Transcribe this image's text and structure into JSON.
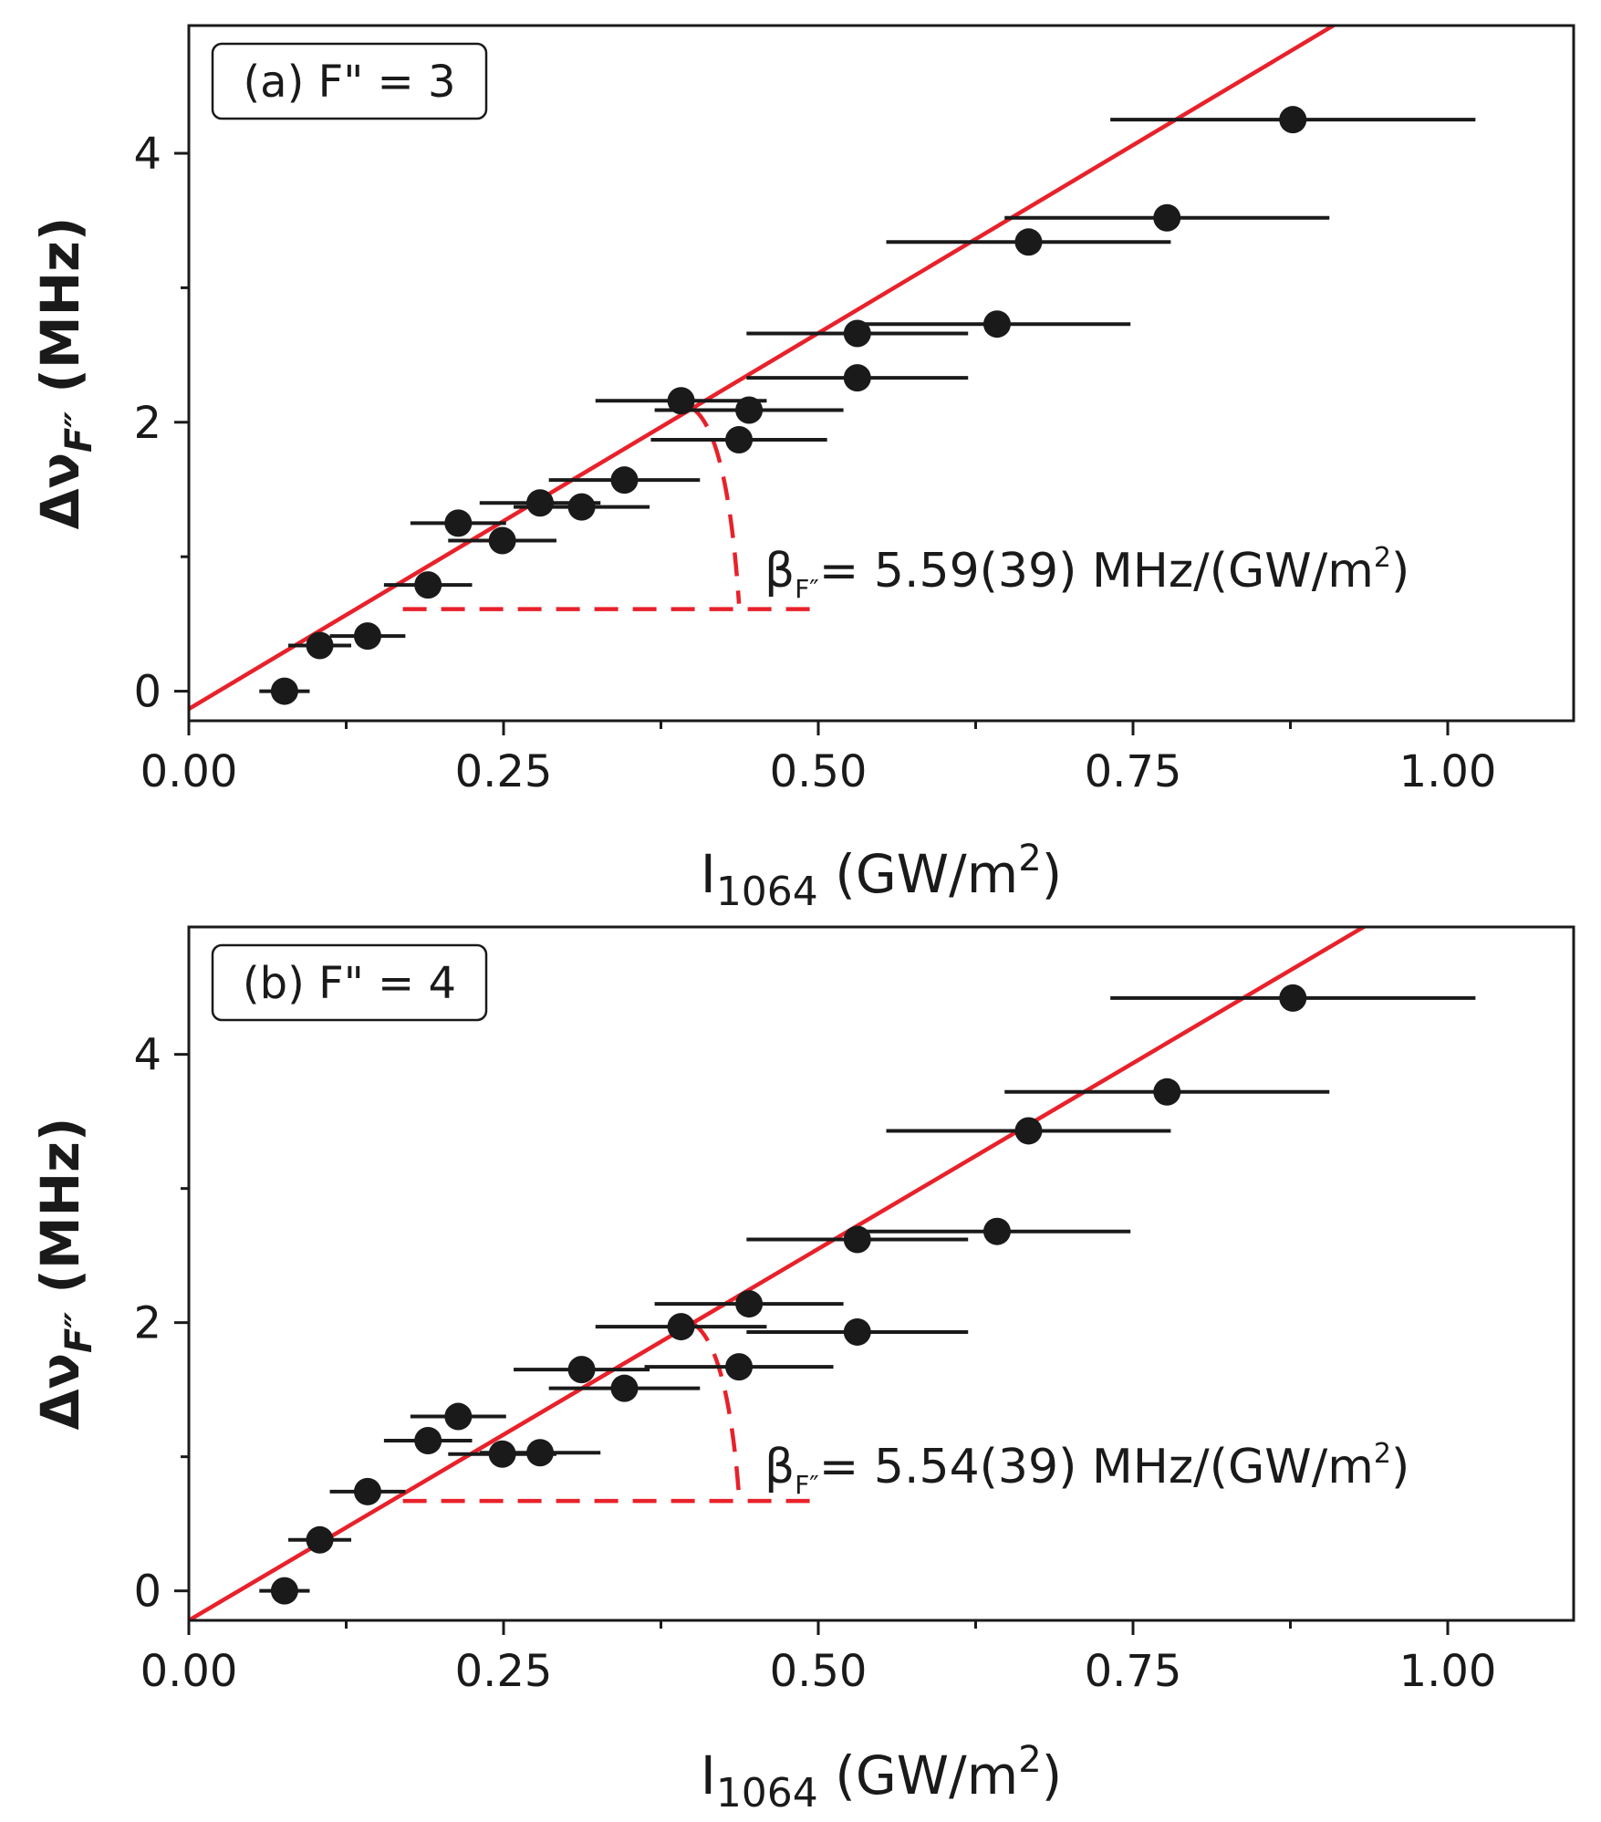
{
  "chart_data": [
    {
      "type": "scatter",
      "panel_label": "(a) F\" = 3",
      "xlabel_main": "I",
      "xlabel_sub": "1064",
      "xlabel_rest": " (GW/m",
      "xlabel_sup": "2",
      "xlabel_close": ")",
      "ylabel_main": "Δν",
      "ylabel_sub": "F″",
      "ylabel_rest": " (MHz)",
      "xlim": [
        0.0,
        1.1
      ],
      "ylim": [
        -0.22,
        4.95
      ],
      "xticks": [
        0.0,
        0.25,
        0.5,
        0.75,
        1.0
      ],
      "xtick_labels": [
        "0.00",
        "0.25",
        "0.50",
        "0.75",
        "1.00"
      ],
      "xminor": [
        0.125,
        0.375,
        0.625,
        0.875
      ],
      "yticks": [
        0,
        2,
        4
      ],
      "ytick_labels": [
        "0",
        "2",
        "4"
      ],
      "yminor": [
        1,
        3
      ],
      "points": [
        {
          "x": 0.076,
          "y": 0.0,
          "xerr": 0.02
        },
        {
          "x": 0.104,
          "y": 0.34,
          "xerr": 0.025
        },
        {
          "x": 0.142,
          "y": 0.41,
          "xerr": 0.03
        },
        {
          "x": 0.19,
          "y": 0.79,
          "xerr": 0.035
        },
        {
          "x": 0.214,
          "y": 1.25,
          "xerr": 0.038
        },
        {
          "x": 0.249,
          "y": 1.12,
          "xerr": 0.043
        },
        {
          "x": 0.279,
          "y": 1.4,
          "xerr": 0.048
        },
        {
          "x": 0.312,
          "y": 1.37,
          "xerr": 0.054
        },
        {
          "x": 0.346,
          "y": 1.57,
          "xerr": 0.06
        },
        {
          "x": 0.391,
          "y": 2.16,
          "xerr": 0.068
        },
        {
          "x": 0.437,
          "y": 1.87,
          "xerr": 0.07
        },
        {
          "x": 0.445,
          "y": 2.09,
          "xerr": 0.075
        },
        {
          "x": 0.531,
          "y": 2.33,
          "xerr": 0.088
        },
        {
          "x": 0.531,
          "y": 2.66,
          "xerr": 0.088
        },
        {
          "x": 0.642,
          "y": 2.73,
          "xerr": 0.106
        },
        {
          "x": 0.667,
          "y": 3.34,
          "xerr": 0.113
        },
        {
          "x": 0.777,
          "y": 3.52,
          "xerr": 0.129
        },
        {
          "x": 0.877,
          "y": 4.25,
          "xerr": 0.145
        }
      ],
      "fit": {
        "slope": 5.59,
        "intercept": -0.132
      },
      "slope_guide": {
        "x0": 0.17,
        "x1": 0.503,
        "apex_x": 0.4,
        "arc_end_x": 0.437,
        "base_y": 0.61
      },
      "annotation_beta": "β",
      "annotation_sub": "F″",
      "annotation_value": "= 5.59(39) MHz/(GW/m",
      "annotation_sup": "2",
      "annotation_close": ")"
    },
    {
      "type": "scatter",
      "panel_label": "(b) F\" = 4",
      "xlabel_main": "I",
      "xlabel_sub": "1064",
      "xlabel_rest": " (GW/m",
      "xlabel_sup": "2",
      "xlabel_close": ")",
      "ylabel_main": "Δν",
      "ylabel_sub": "F″",
      "ylabel_rest": " (MHz)",
      "xlim": [
        0.0,
        1.1
      ],
      "ylim": [
        -0.22,
        4.95
      ],
      "xticks": [
        0.0,
        0.25,
        0.5,
        0.75,
        1.0
      ],
      "xtick_labels": [
        "0.00",
        "0.25",
        "0.50",
        "0.75",
        "1.00"
      ],
      "xminor": [
        0.125,
        0.375,
        0.625,
        0.875
      ],
      "yticks": [
        0,
        2,
        4
      ],
      "ytick_labels": [
        "0",
        "2",
        "4"
      ],
      "yminor": [
        1,
        3
      ],
      "points": [
        {
          "x": 0.076,
          "y": 0.0,
          "xerr": 0.02
        },
        {
          "x": 0.104,
          "y": 0.38,
          "xerr": 0.025
        },
        {
          "x": 0.142,
          "y": 0.74,
          "xerr": 0.03
        },
        {
          "x": 0.19,
          "y": 1.12,
          "xerr": 0.035
        },
        {
          "x": 0.214,
          "y": 1.3,
          "xerr": 0.038
        },
        {
          "x": 0.249,
          "y": 1.02,
          "xerr": 0.043
        },
        {
          "x": 0.279,
          "y": 1.03,
          "xerr": 0.048
        },
        {
          "x": 0.312,
          "y": 1.65,
          "xerr": 0.054
        },
        {
          "x": 0.346,
          "y": 1.51,
          "xerr": 0.06
        },
        {
          "x": 0.391,
          "y": 1.97,
          "xerr": 0.068
        },
        {
          "x": 0.437,
          "y": 1.67,
          "xerr": 0.075
        },
        {
          "x": 0.445,
          "y": 2.14,
          "xerr": 0.075
        },
        {
          "x": 0.531,
          "y": 1.93,
          "xerr": 0.088
        },
        {
          "x": 0.531,
          "y": 2.62,
          "xerr": 0.088
        },
        {
          "x": 0.642,
          "y": 2.68,
          "xerr": 0.106
        },
        {
          "x": 0.667,
          "y": 3.43,
          "xerr": 0.113
        },
        {
          "x": 0.777,
          "y": 3.72,
          "xerr": 0.129
        },
        {
          "x": 0.877,
          "y": 4.42,
          "xerr": 0.145
        }
      ],
      "fit": {
        "slope": 5.54,
        "intercept": -0.22
      },
      "slope_guide": {
        "x0": 0.17,
        "x1": 0.503,
        "apex_x": 0.4,
        "arc_end_x": 0.437,
        "base_y": 0.67
      },
      "annotation_beta": "β",
      "annotation_sub": "F″",
      "annotation_value": "= 5.54(39) MHz/(GW/m",
      "annotation_sup": "2",
      "annotation_close": ")"
    }
  ]
}
